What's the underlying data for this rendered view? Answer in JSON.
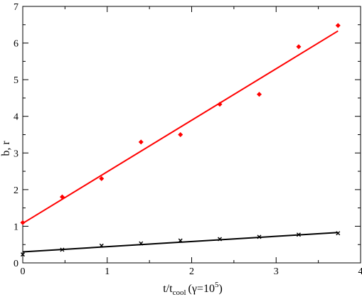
{
  "chart_data": {
    "type": "scatter",
    "xlabel": {
      "main": "t/t",
      "sub": "cool",
      "paren": "(γ=10",
      "sup": "5",
      "close": ")"
    },
    "ylabel": "b,  r",
    "xlim": [
      0,
      4
    ],
    "ylim": [
      0,
      7
    ],
    "xticks": [
      "0",
      "1",
      "2",
      "3",
      "4"
    ],
    "yticks": [
      "0",
      "1",
      "2",
      "3",
      "4",
      "5",
      "6",
      "7"
    ],
    "grid": false,
    "series": [
      {
        "marker": "diamond",
        "color": "#ff0000",
        "x": [
          0,
          0.467,
          0.933,
          1.4,
          1.867,
          2.333,
          2.8,
          3.267,
          3.733
        ],
        "y": [
          1.1,
          1.8,
          2.3,
          3.3,
          3.5,
          4.33,
          4.6,
          5.9,
          6.48
        ],
        "fit": {
          "x": [
            0,
            3.733
          ],
          "y": [
            1.08,
            6.33
          ]
        }
      },
      {
        "marker": "x",
        "color": "#000000",
        "x": [
          0,
          0.467,
          0.933,
          1.4,
          1.867,
          2.333,
          2.8,
          3.267,
          3.733
        ],
        "y": [
          0.23,
          0.36,
          0.47,
          0.53,
          0.61,
          0.65,
          0.71,
          0.77,
          0.81
        ],
        "fit": {
          "x": [
            0,
            3.733
          ],
          "y": [
            0.3,
            0.83
          ]
        }
      }
    ]
  }
}
